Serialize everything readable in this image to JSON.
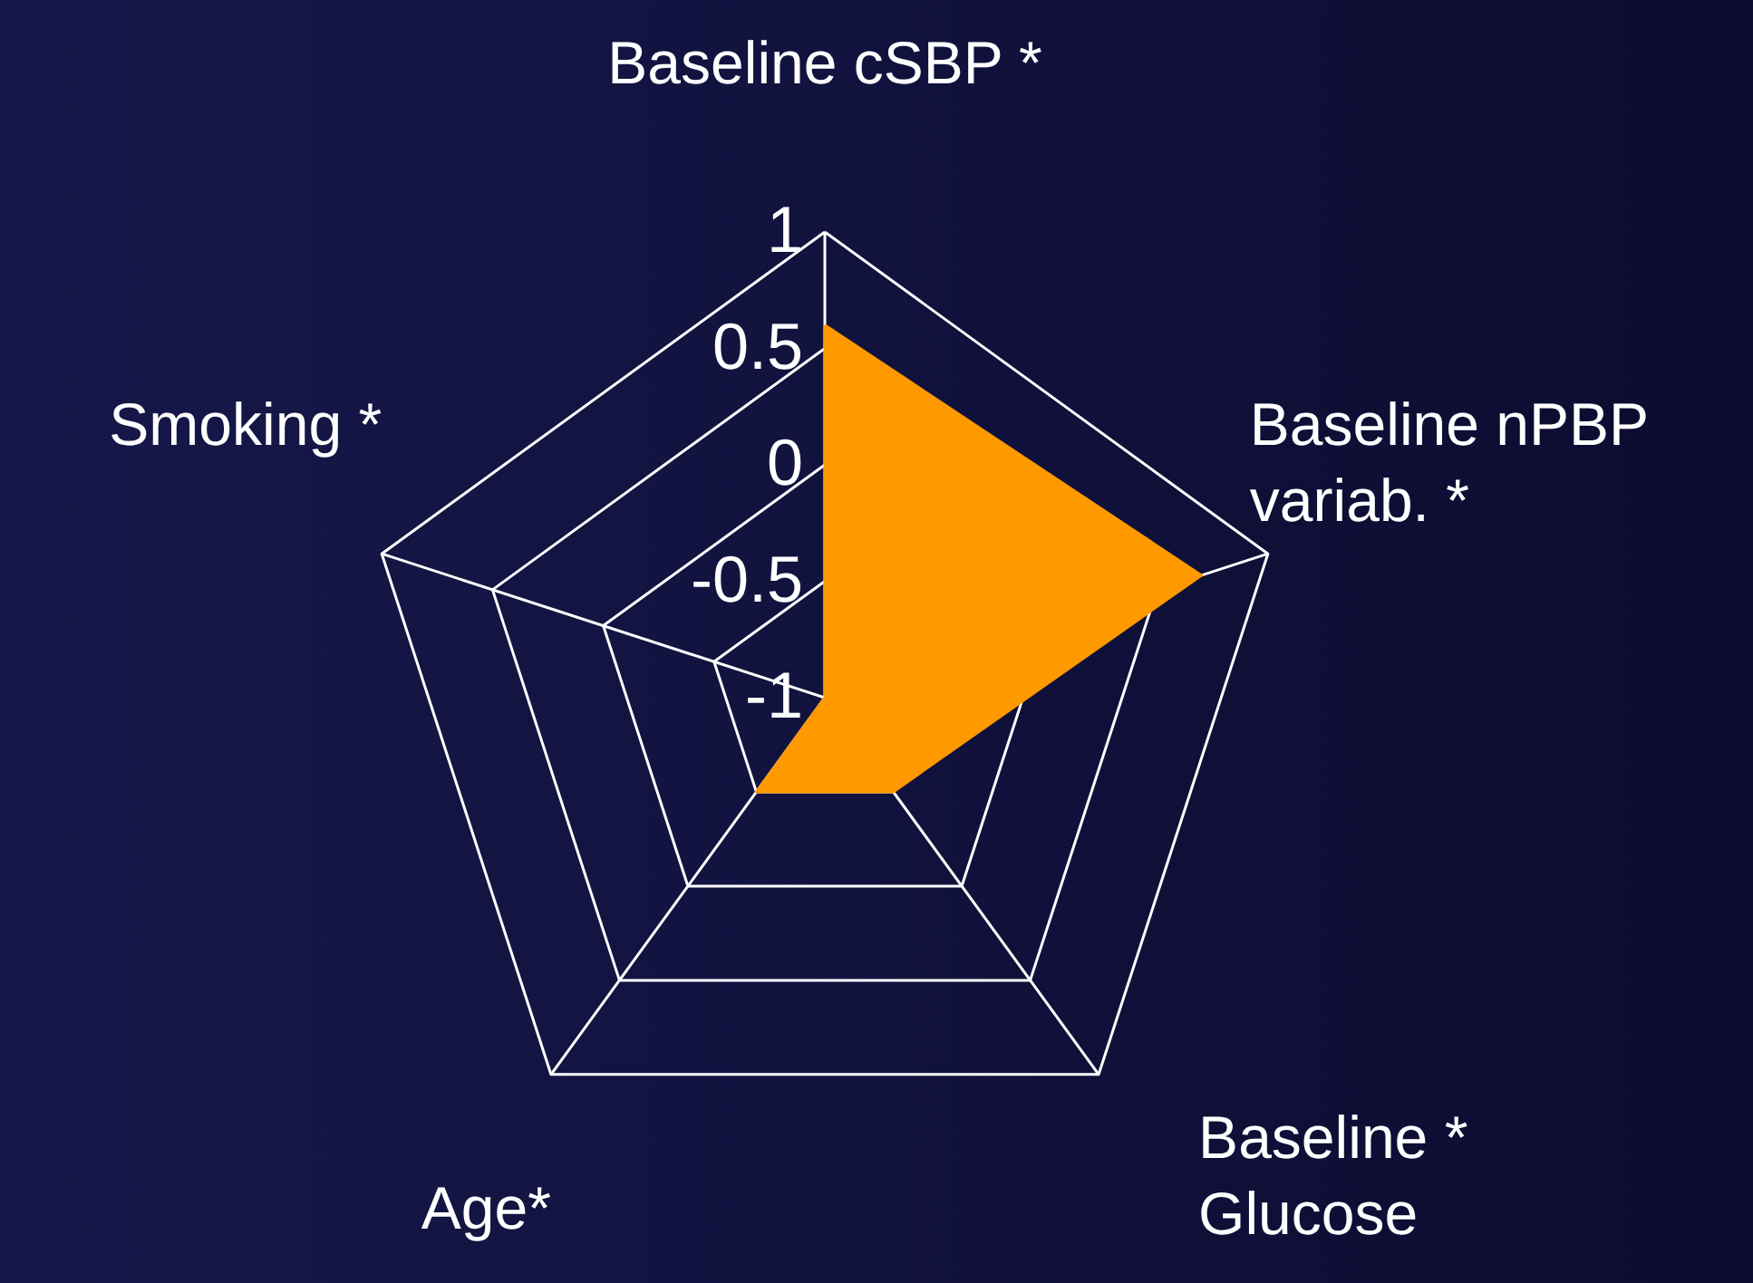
{
  "chart_data": {
    "type": "radar",
    "categories": [
      "Baseline cSBP *",
      "Baseline nPBP\nvariab. *",
      "Baseline *\nGlucose",
      "Age*",
      "Smoking *"
    ],
    "series": [
      {
        "color": "#ff9900",
        "values": [
          0.6,
          0.7,
          -0.5,
          -0.5,
          -1
        ]
      }
    ],
    "ylim": [
      -1,
      1
    ],
    "yticks": [
      1,
      0.5,
      0,
      -0.5,
      -1
    ],
    "grid": true
  }
}
